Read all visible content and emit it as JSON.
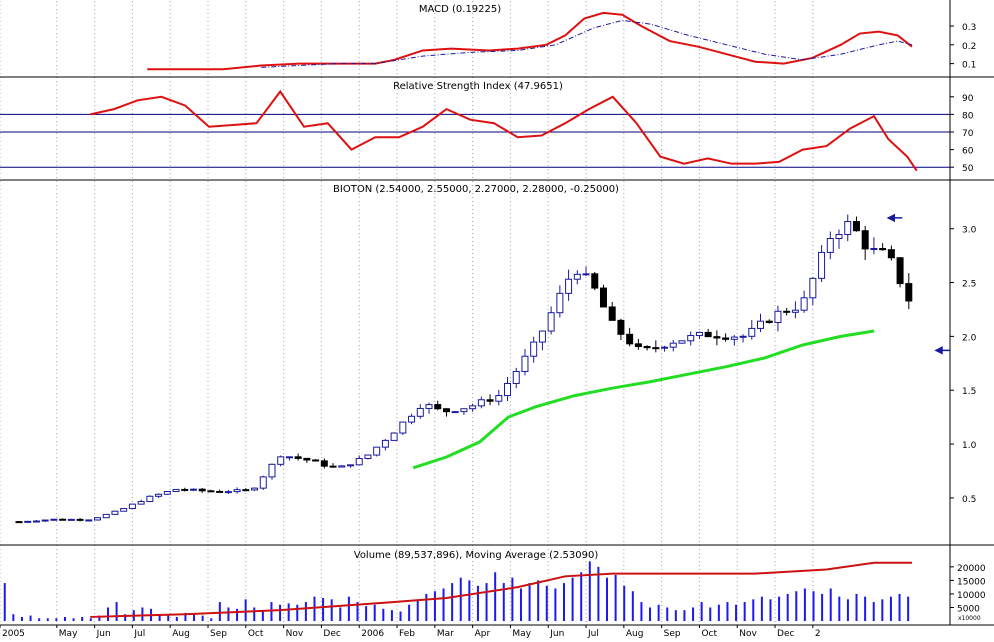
{
  "chart_data": {
    "type": "stock-chart",
    "x_months": [
      "2005",
      "May",
      "Jun",
      "Jul",
      "Aug",
      "Sep",
      "Oct",
      "Nov",
      "Dec",
      "2006",
      "Feb",
      "Mar",
      "Apr",
      "May",
      "Jun",
      "Jul",
      "Aug",
      "Sep",
      "Oct",
      "Nov",
      "Dec",
      "2"
    ],
    "macd": {
      "title": "MACD (0.19225)",
      "y_ticks": [
        "0.3",
        "0.2",
        "0.1"
      ],
      "ylim": [
        0.05,
        0.38
      ],
      "line": [
        [
          2005.52,
          0.07
        ],
        [
          2005.6,
          0.07
        ],
        [
          2005.68,
          0.07
        ],
        [
          2005.76,
          0.09
        ],
        [
          2005.84,
          0.1
        ],
        [
          2005.92,
          0.1
        ],
        [
          2006.0,
          0.1
        ],
        [
          2006.04,
          0.12
        ],
        [
          2006.1,
          0.17
        ],
        [
          2006.16,
          0.18
        ],
        [
          2006.24,
          0.17
        ],
        [
          2006.3,
          0.18
        ],
        [
          2006.36,
          0.2
        ],
        [
          2006.4,
          0.25
        ],
        [
          2006.44,
          0.34
        ],
        [
          2006.48,
          0.37
        ],
        [
          2006.52,
          0.36
        ],
        [
          2006.56,
          0.3
        ],
        [
          2006.62,
          0.22
        ],
        [
          2006.68,
          0.19
        ],
        [
          2006.74,
          0.15
        ],
        [
          2006.8,
          0.11
        ],
        [
          2006.86,
          0.1
        ],
        [
          2006.92,
          0.13
        ],
        [
          2006.98,
          0.2
        ],
        [
          2007.02,
          0.26
        ],
        [
          2007.06,
          0.27
        ],
        [
          2007.1,
          0.25
        ],
        [
          2007.13,
          0.19
        ]
      ],
      "signal": [
        [
          2005.76,
          0.08
        ],
        [
          2005.84,
          0.09
        ],
        [
          2005.92,
          0.1
        ],
        [
          2006.0,
          0.1
        ],
        [
          2006.1,
          0.14
        ],
        [
          2006.2,
          0.16
        ],
        [
          2006.3,
          0.17
        ],
        [
          2006.38,
          0.2
        ],
        [
          2006.46,
          0.29
        ],
        [
          2006.52,
          0.33
        ],
        [
          2006.58,
          0.31
        ],
        [
          2006.66,
          0.25
        ],
        [
          2006.74,
          0.2
        ],
        [
          2006.82,
          0.15
        ],
        [
          2006.9,
          0.12
        ],
        [
          2006.98,
          0.15
        ],
        [
          2007.06,
          0.2
        ],
        [
          2007.1,
          0.22
        ],
        [
          2007.13,
          0.2
        ]
      ]
    },
    "rsi": {
      "title": "Relative Strength Index (47.9651)",
      "y_ticks": [
        "90",
        "80",
        "70",
        "60",
        "50"
      ],
      "ylim": [
        45,
        95
      ],
      "levels": [
        80,
        70,
        50
      ],
      "line": [
        [
          2005.4,
          80
        ],
        [
          2005.45,
          83
        ],
        [
          2005.5,
          88
        ],
        [
          2005.55,
          90
        ],
        [
          2005.6,
          85
        ],
        [
          2005.65,
          73
        ],
        [
          2005.7,
          74
        ],
        [
          2005.75,
          75
        ],
        [
          2005.8,
          93
        ],
        [
          2005.85,
          73
        ],
        [
          2005.9,
          75
        ],
        [
          2005.95,
          60
        ],
        [
          2006.0,
          67
        ],
        [
          2006.05,
          67
        ],
        [
          2006.1,
          73
        ],
        [
          2006.15,
          83
        ],
        [
          2006.2,
          77
        ],
        [
          2006.25,
          75
        ],
        [
          2006.3,
          67
        ],
        [
          2006.35,
          68
        ],
        [
          2006.4,
          75
        ],
        [
          2006.45,
          83
        ],
        [
          2006.5,
          90
        ],
        [
          2006.55,
          75
        ],
        [
          2006.6,
          56
        ],
        [
          2006.65,
          52
        ],
        [
          2006.7,
          55
        ],
        [
          2006.75,
          52
        ],
        [
          2006.8,
          52
        ],
        [
          2006.85,
          53
        ],
        [
          2006.9,
          60
        ],
        [
          2006.95,
          62
        ],
        [
          2007.0,
          72
        ],
        [
          2007.05,
          79
        ],
        [
          2007.08,
          66
        ],
        [
          2007.12,
          56
        ],
        [
          2007.14,
          48
        ]
      ]
    },
    "price": {
      "title": "BIOTON (2.54000, 2.55000, 2.27000, 2.28000, -0.25000)",
      "y_ticks": [
        "3.0",
        "2.5",
        "2.0",
        "1.5",
        "1.0",
        "0.5"
      ],
      "ylim": [
        0.1,
        3.35
      ],
      "close_path": [
        [
          2005.25,
          0.28
        ],
        [
          2005.32,
          0.3
        ],
        [
          2005.4,
          0.3
        ],
        [
          2005.46,
          0.38
        ],
        [
          2005.52,
          0.5
        ],
        [
          2005.58,
          0.58
        ],
        [
          2005.66,
          0.56
        ],
        [
          2005.74,
          0.57
        ],
        [
          2005.8,
          0.9
        ],
        [
          2005.86,
          0.85
        ],
        [
          2005.92,
          0.77
        ],
        [
          2005.98,
          0.88
        ],
        [
          2006.04,
          1.12
        ],
        [
          2006.1,
          1.38
        ],
        [
          2006.14,
          1.3
        ],
        [
          2006.2,
          1.35
        ],
        [
          2006.26,
          1.45
        ],
        [
          2006.3,
          1.7
        ],
        [
          2006.34,
          1.95
        ],
        [
          2006.38,
          2.3
        ],
        [
          2006.42,
          2.65
        ],
        [
          2006.46,
          2.45
        ],
        [
          2006.5,
          2.1
        ],
        [
          2006.56,
          1.85
        ],
        [
          2006.62,
          1.95
        ],
        [
          2006.7,
          2.02
        ],
        [
          2006.78,
          2.0
        ],
        [
          2006.84,
          2.2
        ],
        [
          2006.9,
          2.3
        ],
        [
          2006.96,
          2.95
        ],
        [
          2007.0,
          3.05
        ],
        [
          2007.04,
          2.8
        ],
        [
          2007.08,
          2.75
        ],
        [
          2007.13,
          2.28
        ]
      ],
      "moving_average": [
        [
          2006.08,
          0.78
        ],
        [
          2006.15,
          0.88
        ],
        [
          2006.22,
          1.02
        ],
        [
          2006.28,
          1.25
        ],
        [
          2006.34,
          1.35
        ],
        [
          2006.42,
          1.45
        ],
        [
          2006.5,
          1.52
        ],
        [
          2006.58,
          1.58
        ],
        [
          2006.66,
          1.65
        ],
        [
          2006.74,
          1.72
        ],
        [
          2006.82,
          1.8
        ],
        [
          2006.9,
          1.92
        ],
        [
          2006.98,
          2.0
        ],
        [
          2007.05,
          2.05
        ]
      ]
    },
    "volume": {
      "title": "Volume (89,537,896), Moving Average (2.53090)",
      "y_ticks": [
        "20000",
        "15000",
        "10000",
        "5000"
      ],
      "multiplier": "x10000",
      "ylim": [
        0,
        24000
      ],
      "ma": [
        [
          2005.4,
          1500
        ],
        [
          2005.6,
          2500
        ],
        [
          2005.8,
          4000
        ],
        [
          2006.0,
          6500
        ],
        [
          2006.15,
          8500
        ],
        [
          2006.3,
          12500
        ],
        [
          2006.4,
          16500
        ],
        [
          2006.5,
          17500
        ],
        [
          2006.65,
          17500
        ],
        [
          2006.8,
          17500
        ],
        [
          2006.95,
          19000
        ],
        [
          2007.05,
          21500
        ],
        [
          2007.13,
          21500
        ]
      ],
      "bars": [
        14000,
        2500,
        1500,
        2000,
        1000,
        1000,
        1000,
        1500,
        1000,
        1500,
        1000,
        2000,
        5000,
        7000,
        2500,
        4000,
        5000,
        4500,
        2500,
        2000,
        1500,
        3000,
        2500,
        2000,
        1000,
        7000,
        5000,
        4500,
        8000,
        5000,
        4000,
        7000,
        6000,
        6500,
        6000,
        7000,
        9000,
        8500,
        8000,
        5000,
        9000,
        7000,
        5500,
        6000,
        4500,
        4000,
        3500,
        6000,
        8000,
        10000,
        11000,
        12000,
        14000,
        16000,
        15000,
        13000,
        14000,
        18000,
        14000,
        16000,
        12000,
        14000,
        15000,
        13000,
        12000,
        14000,
        16000,
        18000,
        22000,
        20000,
        16000,
        17000,
        13000,
        11000,
        7000,
        5000,
        6000,
        5000,
        4000,
        4000,
        5000,
        7000,
        5000,
        6000,
        7000,
        6000,
        7000,
        8000,
        9000,
        8000,
        9000,
        10000,
        11000,
        12000,
        11000,
        10000,
        12000,
        9000,
        8000,
        10000,
        9000,
        7000,
        8000,
        9000,
        10000,
        9000
      ]
    }
  }
}
